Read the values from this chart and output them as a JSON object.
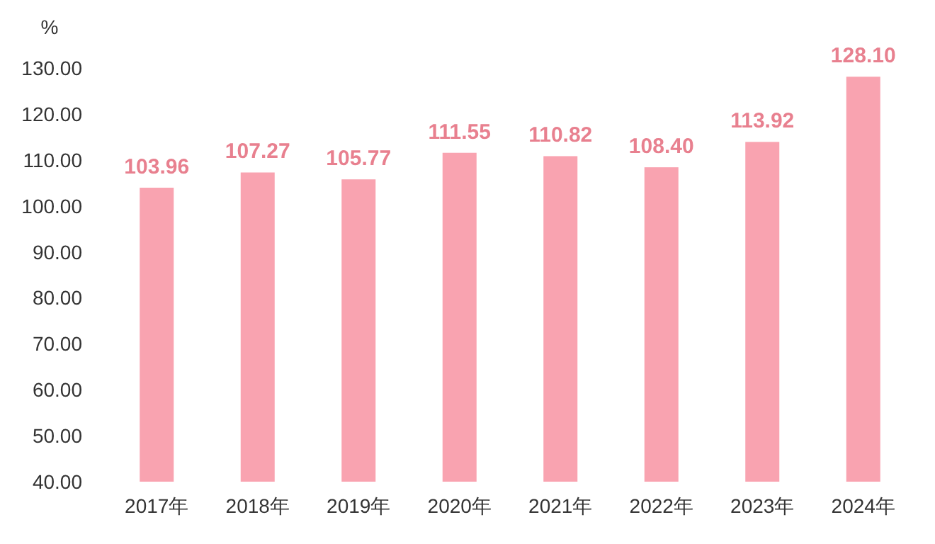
{
  "chart_data": {
    "type": "bar",
    "ylabel": "%",
    "categories": [
      "2017年",
      "2018年",
      "2019年",
      "2020年",
      "2021年",
      "2022年",
      "2023年",
      "2024年"
    ],
    "values": [
      103.96,
      107.27,
      105.77,
      111.55,
      110.82,
      108.4,
      113.92,
      128.1
    ],
    "value_labels": [
      "103.96",
      "107.27",
      "105.77",
      "111.55",
      "110.82",
      "108.40",
      "113.92",
      "128.10"
    ],
    "color": "#f9a3b0",
    "ylim": [
      40,
      130
    ],
    "yticks": [
      {
        "value": 40,
        "label": "40.00"
      },
      {
        "value": 50,
        "label": "50.00"
      },
      {
        "value": 60,
        "label": "60.00"
      },
      {
        "value": 70,
        "label": "70.00"
      },
      {
        "value": 80,
        "label": "80.00"
      },
      {
        "value": 90,
        "label": "90.00"
      },
      {
        "value": 100,
        "label": "100.00"
      },
      {
        "value": 110,
        "label": "110.00"
      },
      {
        "value": 120,
        "label": "120.00"
      },
      {
        "value": 130,
        "label": "130.00"
      }
    ],
    "grid": false
  }
}
